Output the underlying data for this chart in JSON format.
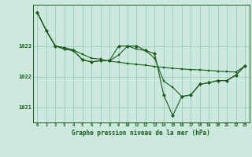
{
  "title": "Graphe pression niveau de la mer (hPa)",
  "background_color": "#cce8df",
  "plot_bg_color": "#cce8df",
  "grid_color": "#99ccbb",
  "line_color": "#1a5c1a",
  "marker_color": "#1a5c1a",
  "xlim": [
    -0.5,
    23.5
  ],
  "ylim": [
    1020.5,
    1024.35
  ],
  "yticks": [
    1021,
    1022,
    1023
  ],
  "xticks": [
    0,
    1,
    2,
    3,
    4,
    5,
    6,
    7,
    8,
    9,
    10,
    11,
    12,
    13,
    14,
    15,
    16,
    17,
    18,
    19,
    20,
    21,
    22,
    23
  ],
  "line1_x": [
    0,
    1,
    2,
    3,
    4,
    5,
    6,
    7,
    8,
    9,
    10,
    11,
    12,
    13,
    14,
    15,
    16,
    17,
    18,
    19,
    20,
    21,
    22,
    23
  ],
  "line1_y": [
    1024.1,
    1023.5,
    1023.0,
    1022.95,
    1022.87,
    1022.73,
    1022.6,
    1022.57,
    1022.5,
    1022.47,
    1022.43,
    1022.4,
    1022.37,
    1022.33,
    1022.3,
    1022.27,
    1022.25,
    1022.23,
    1022.22,
    1022.2,
    1022.18,
    1022.16,
    1022.15,
    1022.35
  ],
  "line2_x": [
    0,
    1,
    2,
    3,
    4,
    5,
    6,
    7,
    8,
    9,
    10,
    11,
    12,
    13,
    14,
    15,
    16,
    17,
    18,
    19,
    20,
    21,
    22,
    23
  ],
  "line2_y": [
    1024.1,
    1023.5,
    1023.0,
    1022.9,
    1022.85,
    1022.55,
    1022.48,
    1022.52,
    1022.52,
    1022.7,
    1023.0,
    1022.9,
    1022.85,
    1022.6,
    1021.85,
    1021.65,
    1021.35,
    1021.4,
    1021.75,
    1021.8,
    1021.87,
    1021.87,
    1022.05,
    1022.35
  ],
  "line3_x": [
    0,
    1,
    2,
    3,
    4,
    5,
    6,
    7,
    8,
    9,
    10,
    11,
    12,
    13,
    14,
    15,
    16,
    17,
    18,
    19,
    20,
    21,
    22,
    23
  ],
  "line3_y": [
    1024.1,
    1023.5,
    1023.0,
    1022.9,
    1022.85,
    1022.55,
    1022.48,
    1022.52,
    1022.52,
    1023.0,
    1023.0,
    1023.0,
    1022.85,
    1022.75,
    1021.4,
    1020.72,
    1021.35,
    1021.4,
    1021.75,
    1021.8,
    1021.87,
    1021.87,
    1022.05,
    1022.35
  ]
}
